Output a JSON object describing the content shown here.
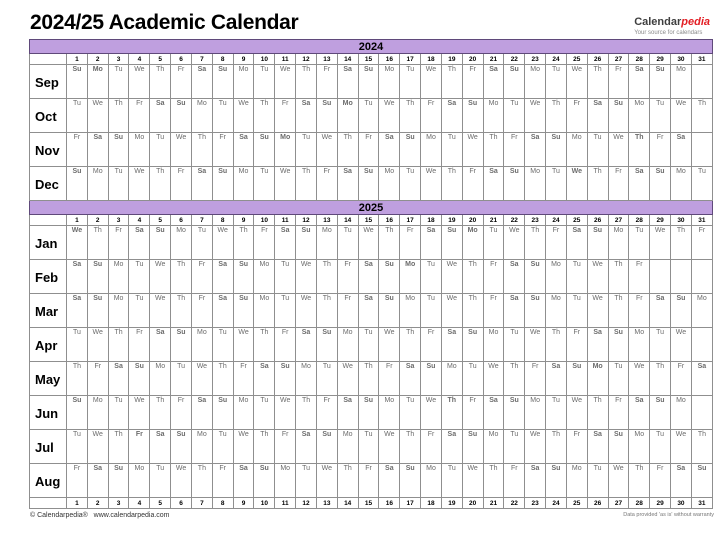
{
  "header": {
    "title": "2024/25 Academic Calendar",
    "logo": {
      "part1": "Calendar",
      "part2": "pedia",
      "tagline": "Your source for calendars"
    }
  },
  "colors": {
    "banner_bg": "#bf9fdf",
    "banner_border": "#5f497a",
    "saturday_bg": "#ffffc9",
    "sunday_bg": "#fac08f",
    "holiday_bg": "#ffc9ce",
    "holiday_text": "#e30000",
    "empty_bg": "#e8e8e8",
    "grid_border": "#8f8f8f",
    "logo_accent": "#e31e24"
  },
  "calendar": {
    "day_numbers": [
      1,
      2,
      3,
      4,
      5,
      6,
      7,
      8,
      9,
      10,
      11,
      12,
      13,
      14,
      15,
      16,
      17,
      18,
      19,
      20,
      21,
      22,
      23,
      24,
      25,
      26,
      27,
      28,
      29,
      30,
      31
    ],
    "weekday_short_names": [
      "Su",
      "Mo",
      "Tu",
      "We",
      "Th",
      "Fr",
      "Sa"
    ],
    "sections": [
      {
        "year": "2024",
        "months": [
          {
            "name": "Sep",
            "days": 30,
            "holidays": [
              2
            ],
            "weekdays": [
              "Su",
              "Mo",
              "Tu",
              "We",
              "Th",
              "Fr",
              "Sa",
              "Su",
              "Mo",
              "Tu",
              "We",
              "Th",
              "Fr",
              "Sa",
              "Su",
              "Mo",
              "Tu",
              "We",
              "Th",
              "Fr",
              "Sa",
              "Su",
              "Mo",
              "Tu",
              "We",
              "Th",
              "Fr",
              "Sa",
              "Su",
              "Mo"
            ]
          },
          {
            "name": "Oct",
            "days": 31,
            "holidays": [
              14
            ],
            "weekdays": [
              "Tu",
              "We",
              "Th",
              "Fr",
              "Sa",
              "Su",
              "Mo",
              "Tu",
              "We",
              "Th",
              "Fr",
              "Sa",
              "Su",
              "Mo",
              "Tu",
              "We",
              "Th",
              "Fr",
              "Sa",
              "Su",
              "Mo",
              "Tu",
              "We",
              "Th",
              "Fr",
              "Sa",
              "Su",
              "Mo",
              "Tu",
              "We",
              "Th"
            ]
          },
          {
            "name": "Nov",
            "days": 30,
            "holidays": [
              11,
              28
            ],
            "weekdays": [
              "Fr",
              "Sa",
              "Su",
              "Mo",
              "Tu",
              "We",
              "Th",
              "Fr",
              "Sa",
              "Su",
              "Mo",
              "Tu",
              "We",
              "Th",
              "Fr",
              "Sa",
              "Su",
              "Mo",
              "Tu",
              "We",
              "Th",
              "Fr",
              "Sa",
              "Su",
              "Mo",
              "Tu",
              "We",
              "Th",
              "Fr",
              "Sa"
            ]
          },
          {
            "name": "Dec",
            "days": 31,
            "holidays": [
              25
            ],
            "weekdays": [
              "Su",
              "Mo",
              "Tu",
              "We",
              "Th",
              "Fr",
              "Sa",
              "Su",
              "Mo",
              "Tu",
              "We",
              "Th",
              "Fr",
              "Sa",
              "Su",
              "Mo",
              "Tu",
              "We",
              "Th",
              "Fr",
              "Sa",
              "Su",
              "Mo",
              "Tu",
              "We",
              "Th",
              "Fr",
              "Sa",
              "Su",
              "Mo",
              "Tu"
            ]
          }
        ]
      },
      {
        "year": "2025",
        "months": [
          {
            "name": "Jan",
            "days": 31,
            "holidays": [
              1,
              20
            ],
            "weekdays": [
              "We",
              "Th",
              "Fr",
              "Sa",
              "Su",
              "Mo",
              "Tu",
              "We",
              "Th",
              "Fr",
              "Sa",
              "Su",
              "Mo",
              "Tu",
              "We",
              "Th",
              "Fr",
              "Sa",
              "Su",
              "Mo",
              "Tu",
              "We",
              "Th",
              "Fr",
              "Sa",
              "Su",
              "Mo",
              "Tu",
              "We",
              "Th",
              "Fr"
            ]
          },
          {
            "name": "Feb",
            "days": 28,
            "holidays": [
              17
            ],
            "weekdays": [
              "Sa",
              "Su",
              "Mo",
              "Tu",
              "We",
              "Th",
              "Fr",
              "Sa",
              "Su",
              "Mo",
              "Tu",
              "We",
              "Th",
              "Fr",
              "Sa",
              "Su",
              "Mo",
              "Tu",
              "We",
              "Th",
              "Fr",
              "Sa",
              "Su",
              "Mo",
              "Tu",
              "We",
              "Th",
              "Fr"
            ]
          },
          {
            "name": "Mar",
            "days": 31,
            "holidays": [],
            "weekdays": [
              "Sa",
              "Su",
              "Mo",
              "Tu",
              "We",
              "Th",
              "Fr",
              "Sa",
              "Su",
              "Mo",
              "Tu",
              "We",
              "Th",
              "Fr",
              "Sa",
              "Su",
              "Mo",
              "Tu",
              "We",
              "Th",
              "Fr",
              "Sa",
              "Su",
              "Mo",
              "Tu",
              "We",
              "Th",
              "Fr",
              "Sa",
              "Su",
              "Mo"
            ]
          },
          {
            "name": "Apr",
            "days": 30,
            "holidays": [],
            "weekdays": [
              "Tu",
              "We",
              "Th",
              "Fr",
              "Sa",
              "Su",
              "Mo",
              "Tu",
              "We",
              "Th",
              "Fr",
              "Sa",
              "Su",
              "Mo",
              "Tu",
              "We",
              "Th",
              "Fr",
              "Sa",
              "Su",
              "Mo",
              "Tu",
              "We",
              "Th",
              "Fr",
              "Sa",
              "Su",
              "Mo",
              "Tu",
              "We"
            ]
          },
          {
            "name": "May",
            "days": 31,
            "holidays": [
              26
            ],
            "weekdays": [
              "Th",
              "Fr",
              "Sa",
              "Su",
              "Mo",
              "Tu",
              "We",
              "Th",
              "Fr",
              "Sa",
              "Su",
              "Mo",
              "Tu",
              "We",
              "Th",
              "Fr",
              "Sa",
              "Su",
              "Mo",
              "Tu",
              "We",
              "Th",
              "Fr",
              "Sa",
              "Su",
              "Mo",
              "Tu",
              "We",
              "Th",
              "Fr",
              "Sa"
            ]
          },
          {
            "name": "Jun",
            "days": 30,
            "holidays": [
              19
            ],
            "weekdays": [
              "Su",
              "Mo",
              "Tu",
              "We",
              "Th",
              "Fr",
              "Sa",
              "Su",
              "Mo",
              "Tu",
              "We",
              "Th",
              "Fr",
              "Sa",
              "Su",
              "Mo",
              "Tu",
              "We",
              "Th",
              "Fr",
              "Sa",
              "Su",
              "Mo",
              "Tu",
              "We",
              "Th",
              "Fr",
              "Sa",
              "Su",
              "Mo"
            ]
          },
          {
            "name": "Jul",
            "days": 31,
            "holidays": [
              4
            ],
            "weekdays": [
              "Tu",
              "We",
              "Th",
              "Fr",
              "Sa",
              "Su",
              "Mo",
              "Tu",
              "We",
              "Th",
              "Fr",
              "Sa",
              "Su",
              "Mo",
              "Tu",
              "We",
              "Th",
              "Fr",
              "Sa",
              "Su",
              "Mo",
              "Tu",
              "We",
              "Th",
              "Fr",
              "Sa",
              "Su",
              "Mo",
              "Tu",
              "We",
              "Th"
            ]
          },
          {
            "name": "Aug",
            "days": 31,
            "holidays": [],
            "weekdays": [
              "Fr",
              "Sa",
              "Su",
              "Mo",
              "Tu",
              "We",
              "Th",
              "Fr",
              "Sa",
              "Su",
              "Mo",
              "Tu",
              "We",
              "Th",
              "Fr",
              "Sa",
              "Su",
              "Mo",
              "Tu",
              "We",
              "Th",
              "Fr",
              "Sa",
              "Su",
              "Mo",
              "Tu",
              "We",
              "Th",
              "Fr",
              "Sa",
              "Su"
            ]
          }
        ]
      }
    ]
  },
  "footer": {
    "copyright": "© Calendarpedia®",
    "website": "www.calendarpedia.com",
    "disclaimer": "Data provided 'as is' without warranty"
  }
}
